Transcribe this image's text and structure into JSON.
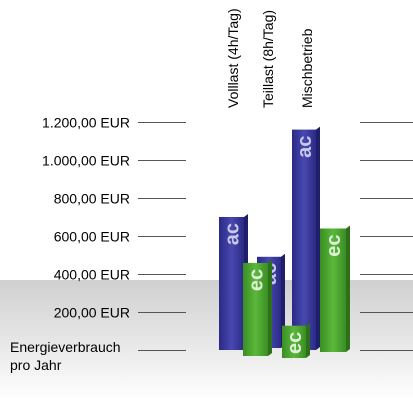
{
  "chart_data": {
    "type": "bar",
    "title": "",
    "xlabel": "",
    "ylabel": "Energieverbrauch pro Jahr",
    "ylabel_lines": [
      "Energieverbrauch",
      "pro Jahr"
    ],
    "yticks": [
      "200,00 EUR",
      "400,00 EUR",
      "600,00 EUR",
      "800,00 EUR",
      "1.000,00 EUR",
      "1.200,00 EUR"
    ],
    "ytick_values": [
      200,
      400,
      600,
      800,
      1000,
      1200
    ],
    "ylim": [
      0,
      1400
    ],
    "categories": [
      "Volllast (4h/Tag)",
      "Teillast (8h/Tag)",
      "Mischbetrieb"
    ],
    "series": [
      {
        "name": "ac",
        "values": [
          700,
          480,
          1160
        ],
        "color": "#3a3a9e"
      },
      {
        "name": "ec",
        "values": [
          490,
          170,
          650
        ],
        "color": "#4aa32e"
      }
    ],
    "grid": true,
    "legend": "none"
  }
}
